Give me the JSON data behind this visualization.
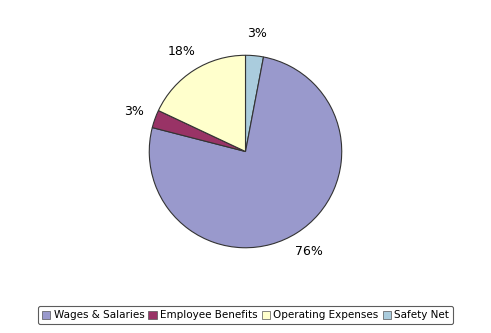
{
  "labels": [
    "Wages & Salaries",
    "Employee Benefits",
    "Operating Expenses",
    "Safety Net"
  ],
  "values": [
    76,
    3,
    18,
    3
  ],
  "colors": [
    "#9999CC",
    "#993366",
    "#FFFFCC",
    "#AACCDD"
  ],
  "background_color": "#ffffff",
  "legend_fontsize": 7.5,
  "startangle": 90,
  "figsize": [
    4.91,
    3.33
  ],
  "dpi": 100
}
